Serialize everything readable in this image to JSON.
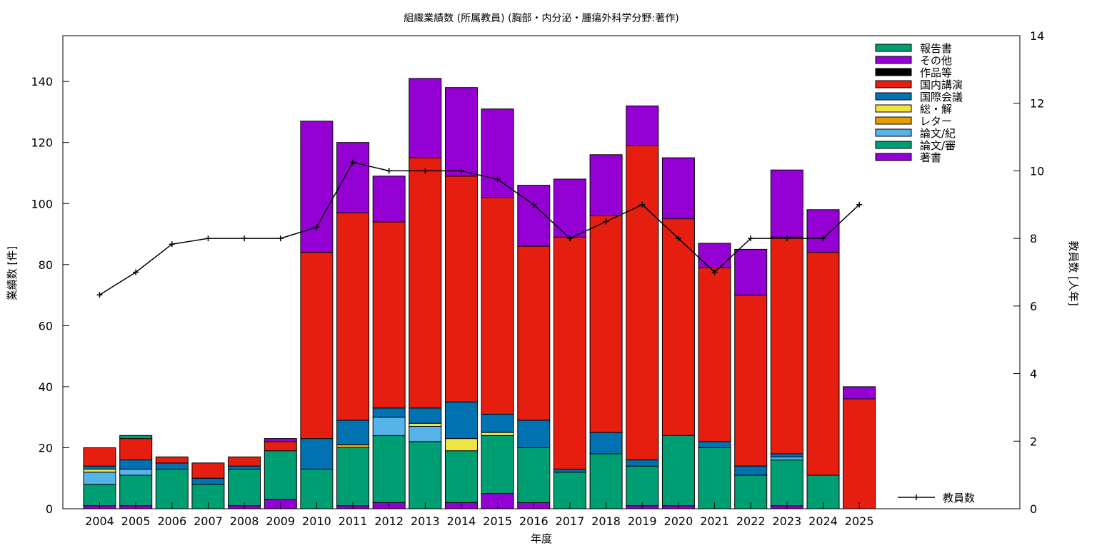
{
  "chart_data": {
    "type": "bar",
    "stacked": true,
    "title": "組織業績数 (所属教員) (胸部・内分泌・腫瘍外科学分野:著作)",
    "xlabel": "年度",
    "ylabel": "業績数 [件]",
    "y2label": "教員数 [人年]",
    "ylim": [
      0,
      155
    ],
    "y2lim": [
      0,
      14
    ],
    "yticks": [
      0,
      20,
      40,
      60,
      80,
      100,
      120,
      140
    ],
    "y2ticks": [
      0,
      2,
      4,
      6,
      8,
      10,
      12,
      14
    ],
    "legend_position": "top-right",
    "categories": [
      "2004",
      "2005",
      "2006",
      "2007",
      "2008",
      "2009",
      "2010",
      "2011",
      "2012",
      "2013",
      "2014",
      "2015",
      "2016",
      "2017",
      "2018",
      "2019",
      "2020",
      "2021",
      "2022",
      "2023",
      "2024",
      "2025"
    ],
    "series": [
      {
        "name": "著書",
        "color": "#9400d3",
        "values": [
          1,
          1,
          0,
          0,
          1,
          3,
          0,
          1,
          2,
          0,
          2,
          5,
          2,
          0,
          0,
          1,
          1,
          0,
          0,
          1,
          0,
          0
        ]
      },
      {
        "name": "論文/審",
        "color": "#009e73",
        "values": [
          7,
          10,
          13,
          8,
          12,
          16,
          13,
          19,
          22,
          22,
          17,
          19,
          18,
          12,
          18,
          13,
          23,
          20,
          11,
          15,
          11,
          0
        ]
      },
      {
        "name": "論文/紀",
        "color": "#56b4e9",
        "values": [
          4,
          2,
          0,
          0,
          0,
          0,
          0,
          0,
          6,
          5,
          0,
          0,
          0,
          0,
          0,
          0,
          0,
          0,
          0,
          1,
          0,
          0
        ]
      },
      {
        "name": "レター",
        "color": "#e69f00",
        "values": [
          0,
          0,
          0,
          0,
          0,
          0,
          0,
          1,
          0,
          0,
          0,
          0,
          0,
          0,
          0,
          0,
          0,
          0,
          0,
          0,
          0,
          0
        ]
      },
      {
        "name": "総・解",
        "color": "#f0e442",
        "values": [
          1,
          0,
          0,
          0,
          0,
          0,
          0,
          0,
          0,
          1,
          4,
          1,
          0,
          0,
          0,
          0,
          0,
          0,
          0,
          0,
          0,
          0
        ]
      },
      {
        "name": "国際会議",
        "color": "#0072b2",
        "values": [
          1,
          3,
          2,
          2,
          1,
          0,
          10,
          8,
          3,
          5,
          12,
          6,
          9,
          1,
          7,
          2,
          0,
          2,
          3,
          1,
          0,
          0
        ]
      },
      {
        "name": "国内講演",
        "color": "#e51e10",
        "values": [
          6,
          7,
          2,
          5,
          3,
          3,
          61,
          68,
          61,
          82,
          74,
          71,
          57,
          76,
          71,
          103,
          71,
          57,
          56,
          71,
          73,
          36
        ]
      },
      {
        "name": "作品等",
        "color": "#000000",
        "values": [
          0,
          0,
          0,
          0,
          0,
          0,
          0,
          0,
          0,
          0,
          0,
          0,
          0,
          0,
          0,
          0,
          0,
          0,
          0,
          0,
          0,
          0
        ]
      },
      {
        "name": "その他",
        "color": "#9400d3",
        "values": [
          0,
          0,
          0,
          0,
          0,
          1,
          43,
          23,
          15,
          26,
          29,
          29,
          20,
          19,
          20,
          13,
          20,
          8,
          15,
          22,
          14,
          4
        ]
      },
      {
        "name": "報告書",
        "color": "#009e73",
        "values": [
          0,
          1,
          0,
          0,
          0,
          0,
          0,
          0,
          0,
          0,
          0,
          0,
          0,
          0,
          0,
          0,
          0,
          0,
          0,
          0,
          0,
          0
        ]
      }
    ],
    "line_series": {
      "name": "教員数",
      "color": "#000000",
      "axis": "y2",
      "values": [
        6.33,
        7,
        7.83,
        8,
        8,
        8,
        8.33,
        10.25,
        10,
        10,
        10,
        9.75,
        9,
        8,
        8.5,
        9,
        8,
        7,
        8,
        8,
        8,
        9
      ]
    }
  }
}
